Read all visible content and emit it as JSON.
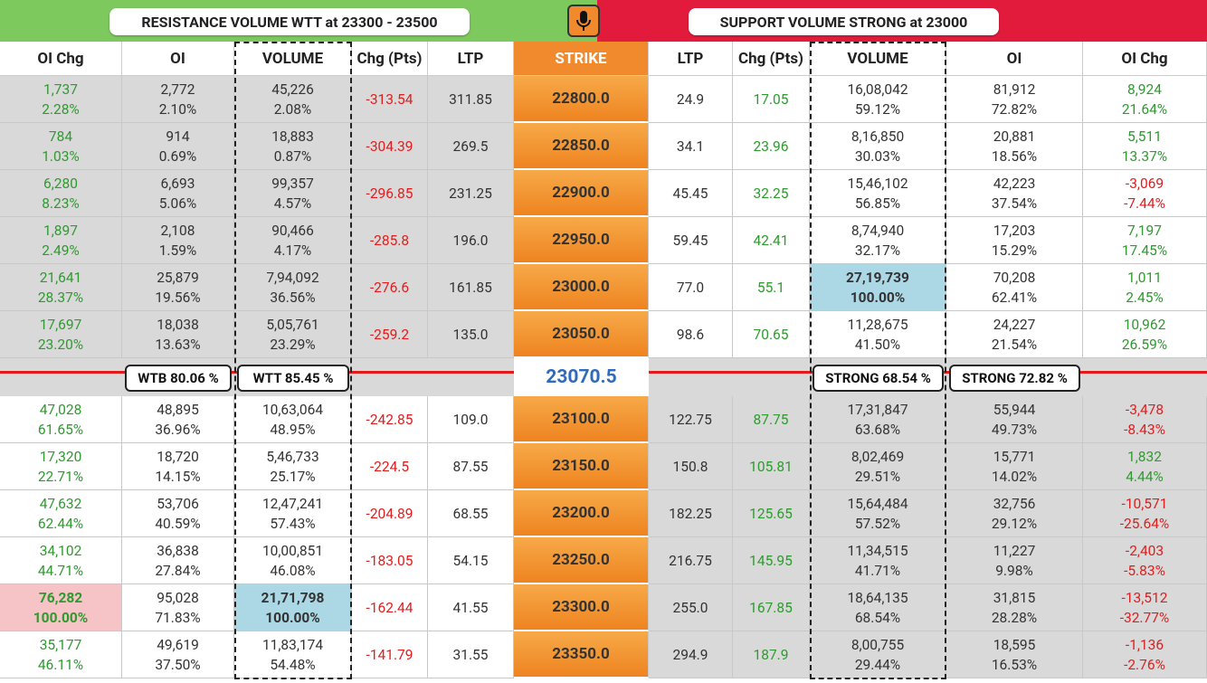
{
  "banners": {
    "left": "RESISTANCE VOLUME WTT at 23300 - 23500",
    "right": "SUPPORT VOLUME STRONG at 23000"
  },
  "columns": [
    "OI Chg",
    "OI",
    "VOLUME",
    "Chg (Pts)",
    "LTP",
    "STRIKE",
    "LTP",
    "Chg (Pts)",
    "VOLUME",
    "OI",
    "OI Chg"
  ],
  "rows_above": [
    [
      [
        "1,737",
        "2.28%"
      ],
      [
        "2,772",
        "2.10%"
      ],
      [
        "45,226",
        "2.08%"
      ],
      "-313.54",
      "311.85",
      "22800.0",
      "24.9",
      "17.05",
      [
        "16,08,042",
        "59.12%"
      ],
      [
        "81,912",
        "72.82%"
      ],
      [
        "8,924",
        "21.64%"
      ]
    ],
    [
      [
        "784",
        "1.03%"
      ],
      [
        "914",
        "0.69%"
      ],
      [
        "18,883",
        "0.87%"
      ],
      "-304.39",
      "269.5",
      "22850.0",
      "34.1",
      "23.96",
      [
        "8,16,850",
        "30.03%"
      ],
      [
        "20,881",
        "18.56%"
      ],
      [
        "5,511",
        "13.37%"
      ]
    ],
    [
      [
        "6,280",
        "8.23%"
      ],
      [
        "6,693",
        "5.06%"
      ],
      [
        "99,357",
        "4.57%"
      ],
      "-296.85",
      "231.25",
      "22900.0",
      "45.45",
      "32.25",
      [
        "15,46,102",
        "56.85%"
      ],
      [
        "42,223",
        "37.54%"
      ],
      [
        "-3,069",
        "-7.44%"
      ]
    ],
    [
      [
        "1,897",
        "2.49%"
      ],
      [
        "2,108",
        "1.59%"
      ],
      [
        "90,466",
        "4.17%"
      ],
      "-285.8",
      "196.0",
      "22950.0",
      "59.45",
      "42.41",
      [
        "8,74,940",
        "32.17%"
      ],
      [
        "17,203",
        "15.29%"
      ],
      [
        "7,197",
        "17.45%"
      ]
    ],
    [
      [
        "21,641",
        "28.37%"
      ],
      [
        "25,879",
        "19.56%"
      ],
      [
        "7,94,092",
        "36.56%"
      ],
      "-276.6",
      "161.85",
      "23000.0",
      "77.0",
      "55.1",
      [
        "27,19,739",
        "100.00%"
      ],
      [
        "70,208",
        "62.41%"
      ],
      [
        "1,011",
        "2.45%"
      ]
    ],
    [
      [
        "17,697",
        "23.20%"
      ],
      [
        "18,038",
        "13.63%"
      ],
      [
        "5,05,761",
        "23.29%"
      ],
      "-259.2",
      "135.0",
      "23050.0",
      "98.6",
      "70.65",
      [
        "11,28,675",
        "41.50%"
      ],
      [
        "24,227",
        "21.54%"
      ],
      [
        "10,962",
        "26.59%"
      ]
    ]
  ],
  "spot": {
    "left_labels": [
      "WTB 80.06 %",
      "WTT 85.45 %"
    ],
    "price": "23070.5",
    "right_labels": [
      "STRONG 68.54 %",
      "STRONG 72.82 %"
    ]
  },
  "rows_below": [
    [
      [
        "47,028",
        "61.65%"
      ],
      [
        "48,895",
        "36.96%"
      ],
      [
        "10,63,064",
        "48.95%"
      ],
      "-242.85",
      "109.0",
      "23100.0",
      "122.75",
      "87.75",
      [
        "17,31,847",
        "63.68%"
      ],
      [
        "55,944",
        "49.73%"
      ],
      [
        "-3,478",
        "-8.43%"
      ]
    ],
    [
      [
        "17,320",
        "22.71%"
      ],
      [
        "18,720",
        "14.15%"
      ],
      [
        "5,46,733",
        "25.17%"
      ],
      "-224.5",
      "87.55",
      "23150.0",
      "150.8",
      "105.81",
      [
        "8,02,469",
        "29.51%"
      ],
      [
        "15,771",
        "14.02%"
      ],
      [
        "1,832",
        "4.44%"
      ]
    ],
    [
      [
        "47,632",
        "62.44%"
      ],
      [
        "53,706",
        "40.59%"
      ],
      [
        "12,47,241",
        "57.43%"
      ],
      "-204.89",
      "68.55",
      "23200.0",
      "182.25",
      "125.65",
      [
        "15,64,484",
        "57.52%"
      ],
      [
        "32,756",
        "29.12%"
      ],
      [
        "-10,571",
        "-25.64%"
      ]
    ],
    [
      [
        "34,102",
        "44.71%"
      ],
      [
        "36,838",
        "27.84%"
      ],
      [
        "10,00,851",
        "46.08%"
      ],
      "-183.05",
      "54.15",
      "23250.0",
      "216.75",
      "145.95",
      [
        "11,34,515",
        "41.71%"
      ],
      [
        "11,227",
        "9.98%"
      ],
      [
        "-2,403",
        "-5.83%"
      ]
    ],
    [
      [
        "76,282",
        "100.00%"
      ],
      [
        "95,028",
        "71.83%"
      ],
      [
        "21,71,798",
        "100.00%"
      ],
      "-162.44",
      "41.55",
      "23300.0",
      "255.0",
      "167.85",
      [
        "18,64,135",
        "68.54%"
      ],
      [
        "31,815",
        "28.28%"
      ],
      [
        "-13,512",
        "-32.77%"
      ]
    ],
    [
      [
        "35,177",
        "46.11%"
      ],
      [
        "49,619",
        "37.50%"
      ],
      [
        "11,83,174",
        "54.48%"
      ],
      "-141.79",
      "31.55",
      "23350.0",
      "294.9",
      "187.9",
      [
        "8,00,755",
        "29.44%"
      ],
      [
        "18,595",
        "16.53%"
      ],
      [
        "-1,136",
        "-2.76%"
      ]
    ]
  ]
}
